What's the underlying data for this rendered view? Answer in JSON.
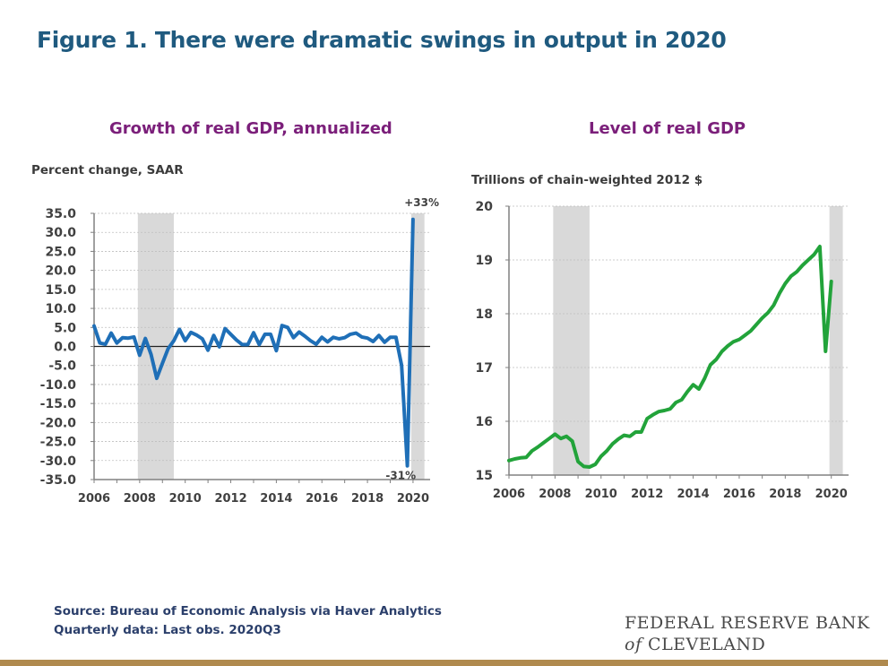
{
  "figure_title": "Figure 1. There were dramatic swings in output in 2020",
  "source_line": "Source: Bureau of Economic Analysis via Haver Analytics",
  "frequency_line": "Quarterly data: Last obs. 2020Q3",
  "logo": {
    "line1": "FEDERAL RESERVE BANK",
    "of": "of",
    "line2": "CLEVELAND"
  },
  "colors": {
    "growth_line": "#1f6fb7",
    "level_line": "#22a33a",
    "recession_shade": "#d9d9d9",
    "title": "#1f5a7f",
    "subtitle": "#7b1f7a",
    "rule": "#b08a4e"
  },
  "chart_data": [
    {
      "type": "line",
      "title": "Growth of real GDP, annualized",
      "ylabel": "Percent change, SAAR",
      "xlabel": "",
      "ylim": [
        -35,
        35
      ],
      "y_ticks": [
        "35.0",
        "30.0",
        "25.0",
        "20.0",
        "15.0",
        "10.0",
        "5.0",
        "0.0",
        "-5.0",
        "-10.0",
        "-15.0",
        "-20.0",
        "-25.0",
        "-30.0",
        "-35.0"
      ],
      "x_ticks": [
        "2006",
        "2008",
        "2010",
        "2012",
        "2014",
        "2016",
        "2018",
        "2020"
      ],
      "x_range": [
        2006,
        2020.75
      ],
      "recessions": [
        [
          2007.92,
          2009.5
        ],
        [
          2019.92,
          2020.5
        ]
      ],
      "annotations": [
        {
          "text": "+33%",
          "x": 2020.5,
          "y": 33.4
        },
        {
          "text": "-31%",
          "x": 2020.25,
          "y": -31.4
        }
      ],
      "series": [
        {
          "x_start": 2006.0,
          "step": 0.25,
          "values": [
            5.4,
            0.9,
            0.6,
            3.5,
            0.9,
            2.3,
            2.2,
            2.5,
            -2.3,
            2.1,
            -2.1,
            -8.4,
            -4.4,
            -0.6,
            1.5,
            4.5,
            1.5,
            3.7,
            3.0,
            2.0,
            -1.0,
            2.9,
            -0.1,
            4.7,
            3.2,
            1.7,
            0.5,
            0.5,
            3.6,
            0.5,
            3.2,
            3.2,
            -1.1,
            5.5,
            5.0,
            2.3,
            3.8,
            2.7,
            1.5,
            0.6,
            2.4,
            1.2,
            2.4,
            2.0,
            2.3,
            3.2,
            3.5,
            2.5,
            2.2,
            1.3,
            2.9,
            1.1,
            2.4,
            2.4,
            -5.0,
            -31.4,
            33.4
          ]
        }
      ]
    },
    {
      "type": "line",
      "title": "Level of real GDP",
      "ylabel": "Trillions of chain-weighted 2012 $",
      "xlabel": "",
      "ylim": [
        15,
        20
      ],
      "y_ticks": [
        "20",
        "19",
        "18",
        "17",
        "16",
        "15"
      ],
      "x_ticks": [
        "2006",
        "2008",
        "2010",
        "2012",
        "2014",
        "2016",
        "2018",
        "2020"
      ],
      "x_range": [
        2006,
        2020.75
      ],
      "recessions": [
        [
          2007.92,
          2009.5
        ],
        [
          2019.92,
          2020.5
        ]
      ],
      "series": [
        {
          "x_start": 2006.0,
          "step": 0.25,
          "values": [
            15.27,
            15.3,
            15.32,
            15.33,
            15.45,
            15.52,
            15.6,
            15.68,
            15.76,
            15.68,
            15.72,
            15.63,
            15.25,
            15.16,
            15.15,
            15.2,
            15.35,
            15.45,
            15.58,
            15.67,
            15.74,
            15.72,
            15.8,
            15.8,
            16.05,
            16.12,
            16.18,
            16.2,
            16.23,
            16.35,
            16.4,
            16.55,
            16.68,
            16.6,
            16.8,
            17.05,
            17.15,
            17.3,
            17.4,
            17.48,
            17.52,
            17.6,
            17.68,
            17.8,
            17.92,
            18.02,
            18.16,
            18.38,
            18.56,
            18.7,
            18.78,
            18.9,
            19.0,
            19.1,
            19.25,
            17.3,
            18.6
          ]
        }
      ]
    }
  ]
}
